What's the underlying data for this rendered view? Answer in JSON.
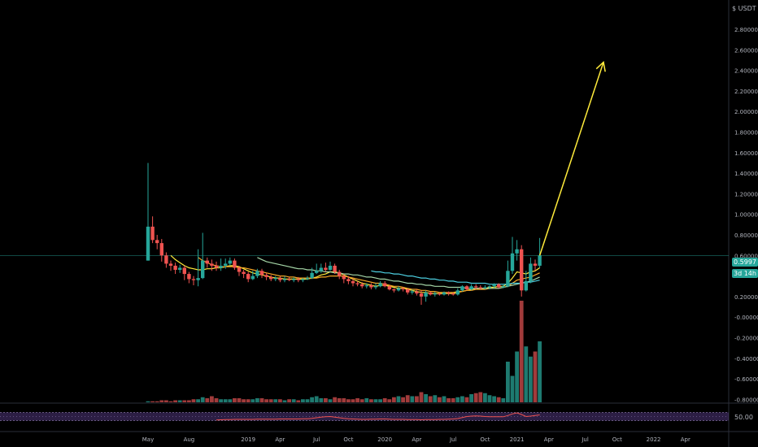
{
  "chart_data": {
    "type": "candlestick",
    "currency": "USDT",
    "last_price_label": "0.5997",
    "countdown_label": "3d 14h",
    "x_ticks": [
      "May",
      "Aug",
      "2019",
      "Apr",
      "Jul",
      "Oct",
      "2020",
      "Apr",
      "Jul",
      "Oct",
      "2021",
      "Apr",
      "Jul",
      "Oct",
      "2022",
      "Apr"
    ],
    "y_ticks": [
      "2.80000",
      "2.60000",
      "2.40000",
      "2.20000",
      "2.00000",
      "1.80000",
      "1.60000",
      "1.40000",
      "1.20000",
      "1.00000",
      "0.80000",
      "0.60000",
      "0.20000",
      "-0.00000",
      "-0.20000",
      "-0.40000",
      "-0.60000",
      "-0.80000"
    ],
    "ylim": [
      -0.9,
      2.95
    ],
    "last_price": 0.5997,
    "candles": [
      [
        0.55,
        0.88,
        0.55,
        1.5
      ],
      [
        0.88,
        0.75,
        0.72,
        0.98
      ],
      [
        0.75,
        0.72,
        0.66,
        0.8
      ],
      [
        0.72,
        0.6,
        0.54,
        0.76
      ],
      [
        0.6,
        0.52,
        0.48,
        0.63
      ],
      [
        0.52,
        0.5,
        0.45,
        0.55
      ],
      [
        0.5,
        0.46,
        0.42,
        0.53
      ],
      [
        0.46,
        0.48,
        0.43,
        0.51
      ],
      [
        0.48,
        0.42,
        0.36,
        0.5
      ],
      [
        0.42,
        0.37,
        0.33,
        0.44
      ],
      [
        0.37,
        0.36,
        0.31,
        0.4
      ],
      [
        0.36,
        0.38,
        0.3,
        0.66
      ],
      [
        0.38,
        0.55,
        0.37,
        0.82
      ],
      [
        0.55,
        0.52,
        0.48,
        0.58
      ],
      [
        0.52,
        0.5,
        0.45,
        0.56
      ],
      [
        0.5,
        0.48,
        0.45,
        0.54
      ],
      [
        0.48,
        0.5,
        0.45,
        0.57
      ],
      [
        0.5,
        0.52,
        0.47,
        0.57
      ],
      [
        0.52,
        0.55,
        0.5,
        0.58
      ],
      [
        0.55,
        0.48,
        0.46,
        0.57
      ],
      [
        0.48,
        0.44,
        0.4,
        0.5
      ],
      [
        0.44,
        0.42,
        0.38,
        0.46
      ],
      [
        0.42,
        0.37,
        0.34,
        0.44
      ],
      [
        0.37,
        0.4,
        0.36,
        0.45
      ],
      [
        0.4,
        0.45,
        0.38,
        0.47
      ],
      [
        0.45,
        0.41,
        0.38,
        0.47
      ],
      [
        0.41,
        0.39,
        0.36,
        0.43
      ],
      [
        0.39,
        0.37,
        0.35,
        0.41
      ],
      [
        0.37,
        0.38,
        0.35,
        0.4
      ],
      [
        0.38,
        0.36,
        0.34,
        0.4
      ],
      [
        0.36,
        0.37,
        0.34,
        0.4
      ],
      [
        0.37,
        0.36,
        0.35,
        0.39
      ],
      [
        0.36,
        0.37,
        0.34,
        0.39
      ],
      [
        0.37,
        0.36,
        0.34,
        0.39
      ],
      [
        0.36,
        0.37,
        0.34,
        0.38
      ],
      [
        0.37,
        0.38,
        0.36,
        0.4
      ],
      [
        0.38,
        0.43,
        0.37,
        0.48
      ],
      [
        0.43,
        0.45,
        0.42,
        0.52
      ],
      [
        0.45,
        0.48,
        0.43,
        0.52
      ],
      [
        0.48,
        0.46,
        0.44,
        0.53
      ],
      [
        0.46,
        0.5,
        0.45,
        0.54
      ],
      [
        0.5,
        0.44,
        0.42,
        0.52
      ],
      [
        0.44,
        0.4,
        0.37,
        0.46
      ],
      [
        0.4,
        0.37,
        0.33,
        0.42
      ],
      [
        0.37,
        0.35,
        0.32,
        0.4
      ],
      [
        0.35,
        0.33,
        0.3,
        0.38
      ],
      [
        0.33,
        0.32,
        0.3,
        0.35
      ],
      [
        0.32,
        0.3,
        0.28,
        0.34
      ],
      [
        0.3,
        0.31,
        0.28,
        0.33
      ],
      [
        0.31,
        0.29,
        0.27,
        0.33
      ],
      [
        0.29,
        0.3,
        0.27,
        0.33
      ],
      [
        0.3,
        0.33,
        0.29,
        0.35
      ],
      [
        0.33,
        0.3,
        0.29,
        0.35
      ],
      [
        0.3,
        0.27,
        0.26,
        0.31
      ],
      [
        0.27,
        0.26,
        0.24,
        0.28
      ],
      [
        0.26,
        0.28,
        0.25,
        0.3
      ],
      [
        0.28,
        0.27,
        0.25,
        0.29
      ],
      [
        0.27,
        0.24,
        0.22,
        0.28
      ],
      [
        0.24,
        0.25,
        0.22,
        0.27
      ],
      [
        0.25,
        0.23,
        0.21,
        0.27
      ],
      [
        0.23,
        0.2,
        0.12,
        0.26
      ],
      [
        0.2,
        0.24,
        0.15,
        0.26
      ],
      [
        0.24,
        0.22,
        0.21,
        0.25
      ],
      [
        0.22,
        0.23,
        0.2,
        0.25
      ],
      [
        0.23,
        0.22,
        0.21,
        0.24
      ],
      [
        0.22,
        0.24,
        0.21,
        0.25
      ],
      [
        0.24,
        0.23,
        0.21,
        0.25
      ],
      [
        0.23,
        0.22,
        0.21,
        0.24
      ],
      [
        0.22,
        0.26,
        0.21,
        0.28
      ],
      [
        0.26,
        0.3,
        0.25,
        0.31
      ],
      [
        0.3,
        0.27,
        0.26,
        0.31
      ],
      [
        0.27,
        0.3,
        0.26,
        0.32
      ],
      [
        0.3,
        0.29,
        0.27,
        0.32
      ],
      [
        0.29,
        0.28,
        0.27,
        0.31
      ],
      [
        0.28,
        0.29,
        0.27,
        0.31
      ],
      [
        0.29,
        0.3,
        0.27,
        0.31
      ],
      [
        0.3,
        0.32,
        0.28,
        0.33
      ],
      [
        0.32,
        0.29,
        0.28,
        0.33
      ],
      [
        0.29,
        0.3,
        0.28,
        0.32
      ],
      [
        0.3,
        0.45,
        0.29,
        0.55
      ],
      [
        0.45,
        0.62,
        0.42,
        0.78
      ],
      [
        0.62,
        0.66,
        0.55,
        0.75
      ],
      [
        0.66,
        0.26,
        0.2,
        0.7
      ],
      [
        0.26,
        0.35,
        0.25,
        0.45
      ],
      [
        0.35,
        0.52,
        0.33,
        0.58
      ],
      [
        0.52,
        0.5,
        0.45,
        0.56
      ],
      [
        0.5,
        0.5997,
        0.48,
        0.77
      ]
    ],
    "ma_series": [
      {
        "color": "#ffeb3b",
        "values": [
          null,
          null,
          null,
          null,
          null,
          0.6,
          0.56,
          0.53,
          0.5,
          0.48,
          0.47,
          0.46,
          0.46,
          0.47,
          0.47,
          0.48,
          0.48,
          0.49,
          0.5,
          0.5,
          0.49,
          0.47,
          0.45,
          0.43,
          0.42,
          0.41,
          0.4,
          0.39,
          0.38,
          0.38,
          0.37,
          0.37,
          0.37,
          0.37,
          0.37,
          0.37,
          0.38,
          0.39,
          0.41,
          0.42,
          0.44,
          0.44,
          0.43,
          0.41,
          0.39,
          0.37,
          0.35,
          0.33,
          0.32,
          0.31,
          0.3,
          0.31,
          0.31,
          0.3,
          0.29,
          0.28,
          0.28,
          0.27,
          0.26,
          0.25,
          0.24,
          0.24,
          0.23,
          0.23,
          0.23,
          0.23,
          0.23,
          0.23,
          0.24,
          0.25,
          0.26,
          0.27,
          0.28,
          0.28,
          0.28,
          0.29,
          0.29,
          0.3,
          0.3,
          0.33,
          0.38,
          0.44,
          0.43,
          0.42,
          0.44,
          0.45,
          0.48
        ]
      },
      {
        "color": "#f9a825",
        "values": [
          null,
          null,
          null,
          null,
          null,
          null,
          null,
          null,
          null,
          null,
          null,
          0.58,
          0.55,
          0.53,
          0.51,
          0.5,
          0.49,
          0.49,
          0.49,
          0.49,
          0.48,
          0.48,
          0.47,
          0.46,
          0.45,
          0.44,
          0.43,
          0.42,
          0.41,
          0.4,
          0.4,
          0.39,
          0.39,
          0.38,
          0.38,
          0.38,
          0.38,
          0.38,
          0.39,
          0.39,
          0.4,
          0.4,
          0.4,
          0.4,
          0.39,
          0.38,
          0.37,
          0.36,
          0.35,
          0.34,
          0.33,
          0.33,
          0.32,
          0.31,
          0.3,
          0.3,
          0.29,
          0.28,
          0.27,
          0.27,
          0.26,
          0.26,
          0.25,
          0.25,
          0.24,
          0.24,
          0.24,
          0.24,
          0.25,
          0.25,
          0.26,
          0.26,
          0.27,
          0.27,
          0.27,
          0.28,
          0.28,
          0.28,
          0.29,
          0.3,
          0.33,
          0.36,
          0.37,
          0.38,
          0.39,
          0.41,
          0.43
        ]
      },
      {
        "color": "#a5d6a7",
        "values": [
          null,
          null,
          null,
          null,
          null,
          null,
          null,
          null,
          null,
          null,
          null,
          null,
          null,
          null,
          null,
          null,
          null,
          null,
          null,
          null,
          null,
          null,
          null,
          null,
          0.58,
          0.56,
          0.54,
          0.53,
          0.52,
          0.51,
          0.5,
          0.49,
          0.48,
          0.47,
          0.47,
          0.46,
          0.46,
          0.45,
          0.45,
          0.44,
          0.44,
          0.43,
          0.43,
          0.42,
          0.42,
          0.41,
          0.41,
          0.4,
          0.39,
          0.39,
          0.38,
          0.37,
          0.37,
          0.36,
          0.35,
          0.35,
          0.34,
          0.33,
          0.33,
          0.32,
          0.32,
          0.31,
          0.31,
          0.3,
          0.3,
          0.3,
          0.29,
          0.29,
          0.29,
          0.29,
          0.28,
          0.28,
          0.28,
          0.28,
          0.28,
          0.28,
          0.28,
          0.28,
          0.29,
          0.3,
          0.31,
          0.32,
          0.33,
          0.34,
          0.35,
          0.37,
          0.39
        ]
      },
      {
        "color": "#4dd0e1",
        "values": [
          null,
          null,
          null,
          null,
          null,
          null,
          null,
          null,
          null,
          null,
          null,
          null,
          null,
          null,
          null,
          null,
          null,
          null,
          null,
          null,
          null,
          null,
          null,
          null,
          null,
          null,
          null,
          null,
          null,
          null,
          null,
          null,
          null,
          null,
          null,
          null,
          null,
          null,
          null,
          null,
          null,
          null,
          null,
          null,
          null,
          null,
          null,
          null,
          null,
          0.45,
          0.44,
          0.44,
          0.43,
          0.43,
          0.42,
          0.42,
          0.41,
          0.4,
          0.4,
          0.39,
          0.38,
          0.38,
          0.37,
          0.37,
          0.36,
          0.36,
          0.35,
          0.35,
          0.34,
          0.34,
          0.34,
          0.33,
          0.33,
          0.33,
          0.33,
          0.32,
          0.32,
          0.32,
          0.32,
          0.32,
          0.33,
          0.33,
          0.33,
          0.34,
          0.34,
          0.35,
          0.36
        ]
      }
    ],
    "volume_relative": [
      0.01,
      0.01,
      0.01,
      0.02,
      0.02,
      0.01,
      0.02,
      0.02,
      0.02,
      0.02,
      0.03,
      0.03,
      0.05,
      0.04,
      0.06,
      0.04,
      0.03,
      0.03,
      0.03,
      0.04,
      0.04,
      0.03,
      0.03,
      0.03,
      0.04,
      0.04,
      0.03,
      0.03,
      0.03,
      0.03,
      0.02,
      0.03,
      0.03,
      0.02,
      0.03,
      0.03,
      0.05,
      0.06,
      0.04,
      0.04,
      0.03,
      0.05,
      0.04,
      0.04,
      0.03,
      0.03,
      0.04,
      0.03,
      0.04,
      0.03,
      0.03,
      0.03,
      0.04,
      0.03,
      0.05,
      0.06,
      0.05,
      0.07,
      0.06,
      0.06,
      0.1,
      0.08,
      0.06,
      0.07,
      0.05,
      0.06,
      0.04,
      0.04,
      0.05,
      0.06,
      0.05,
      0.08,
      0.09,
      0.1,
      0.09,
      0.07,
      0.06,
      0.05,
      0.04,
      0.4,
      0.26,
      0.5,
      1.0,
      0.55,
      0.45,
      0.5,
      0.6
    ],
    "rsi": {
      "label": "50.00",
      "upper": 70,
      "lower": 30,
      "values": [
        null,
        null,
        null,
        null,
        null,
        null,
        null,
        null,
        null,
        null,
        null,
        null,
        null,
        null,
        null,
        33,
        34,
        35,
        35,
        36,
        36,
        36,
        36,
        36,
        37,
        37,
        37,
        37,
        37,
        38,
        38,
        38,
        38,
        38,
        39,
        39,
        41,
        44,
        47,
        49,
        50,
        47,
        44,
        41,
        39,
        38,
        37,
        36,
        36,
        37,
        37,
        38,
        38,
        37,
        36,
        36,
        36,
        35,
        35,
        35,
        34,
        35,
        35,
        35,
        36,
        36,
        37,
        38,
        40,
        45,
        50,
        52,
        53,
        52,
        50,
        49,
        49,
        49,
        49,
        55,
        63,
        68,
        60,
        50,
        52,
        55,
        58
      ]
    },
    "projection_arrow": {
      "from_index": 86,
      "from_price": 0.5997,
      "to_index": 100,
      "to_price": 2.48,
      "color": "#ffeb3b"
    },
    "colors": {
      "up": "#26a69a",
      "down": "#ef5350",
      "volume_up": "#1e7a70",
      "volume_down": "#a13b3b",
      "rsi_line": "#ef5350",
      "rsi_band": "#7e57c2",
      "price_line": "#26a69a"
    }
  }
}
